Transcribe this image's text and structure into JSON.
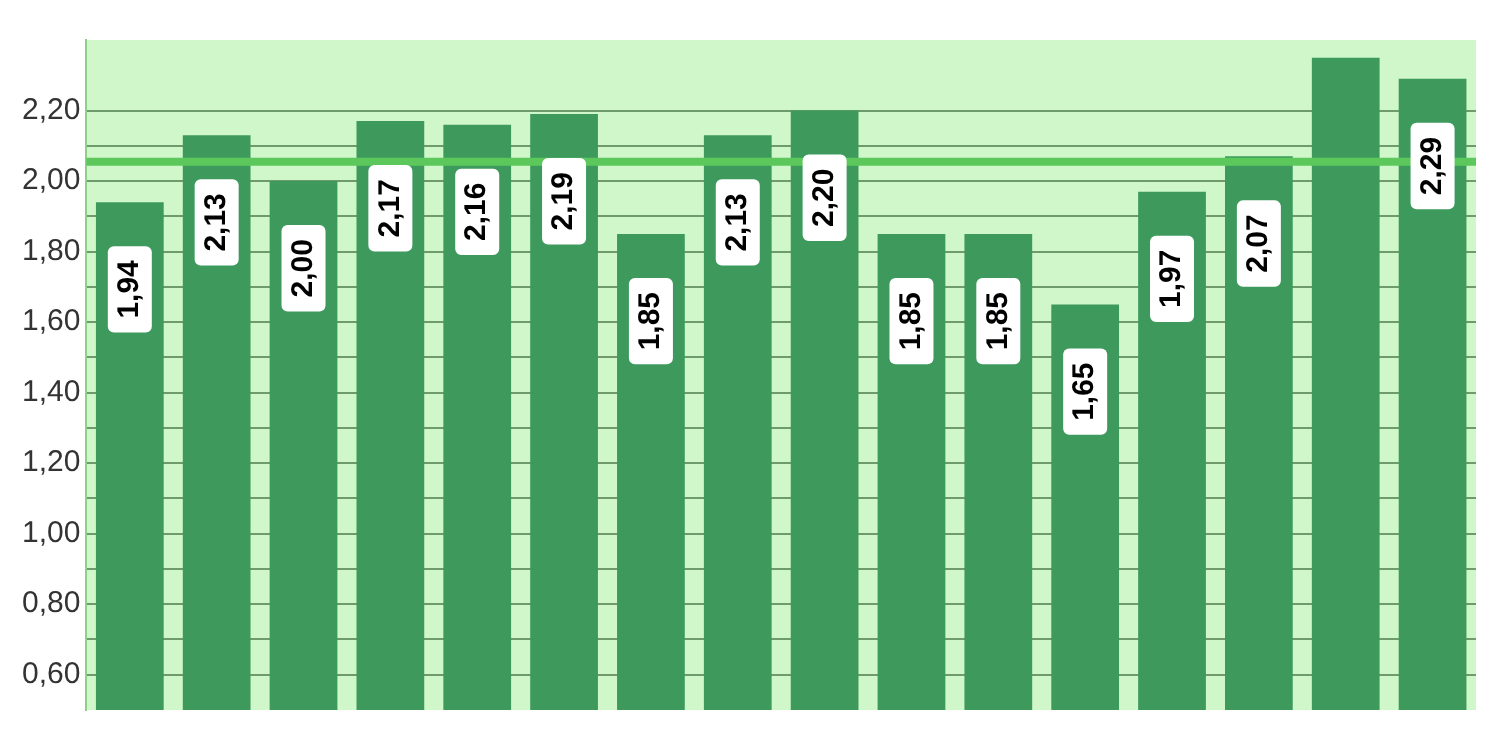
{
  "chart_data": {
    "type": "bar",
    "categories": [
      null,
      null,
      null,
      null,
      null,
      null,
      null,
      null,
      null,
      null,
      null,
      null,
      null,
      null,
      null,
      null
    ],
    "values": [
      1.94,
      2.13,
      2.0,
      2.17,
      2.16,
      2.19,
      1.85,
      2.13,
      2.2,
      1.85,
      1.85,
      1.65,
      1.97,
      2.07,
      2.35,
      2.29
    ],
    "value_labels": [
      "1,94",
      "2,13",
      "2,00",
      "2,17",
      "2,16",
      "2,19",
      "1,85",
      "2,13",
      "2,20",
      "1,85",
      "1,85",
      "1,65",
      "1,97",
      "2,07",
      null,
      "2,29"
    ],
    "color": "#3d9a5c",
    "ylim": [
      0.5,
      2.4
    ],
    "yticks": [
      {
        "value": 0.6,
        "label": "0,60"
      },
      {
        "value": 0.7,
        "label": null
      },
      {
        "value": 0.8,
        "label": "0,80"
      },
      {
        "value": 0.9,
        "label": null
      },
      {
        "value": 1.0,
        "label": "1,00"
      },
      {
        "value": 1.1,
        "label": null
      },
      {
        "value": 1.2,
        "label": "1,20"
      },
      {
        "value": 1.3,
        "label": null
      },
      {
        "value": 1.4,
        "label": "1,40"
      },
      {
        "value": 1.5,
        "label": null
      },
      {
        "value": 1.6,
        "label": "1,60"
      },
      {
        "value": 1.7,
        "label": null
      },
      {
        "value": 1.8,
        "label": "1,80"
      },
      {
        "value": 1.9,
        "label": null
      },
      {
        "value": 2.0,
        "label": "2,00"
      },
      {
        "value": 2.1,
        "label": null
      },
      {
        "value": 2.2,
        "label": "2,20"
      }
    ],
    "ref_lines": [
      {
        "axis": "y",
        "value": 2.055,
        "color": "#5cc85c"
      }
    ],
    "grid": "y",
    "legend": false,
    "tick_labels": "y"
  }
}
